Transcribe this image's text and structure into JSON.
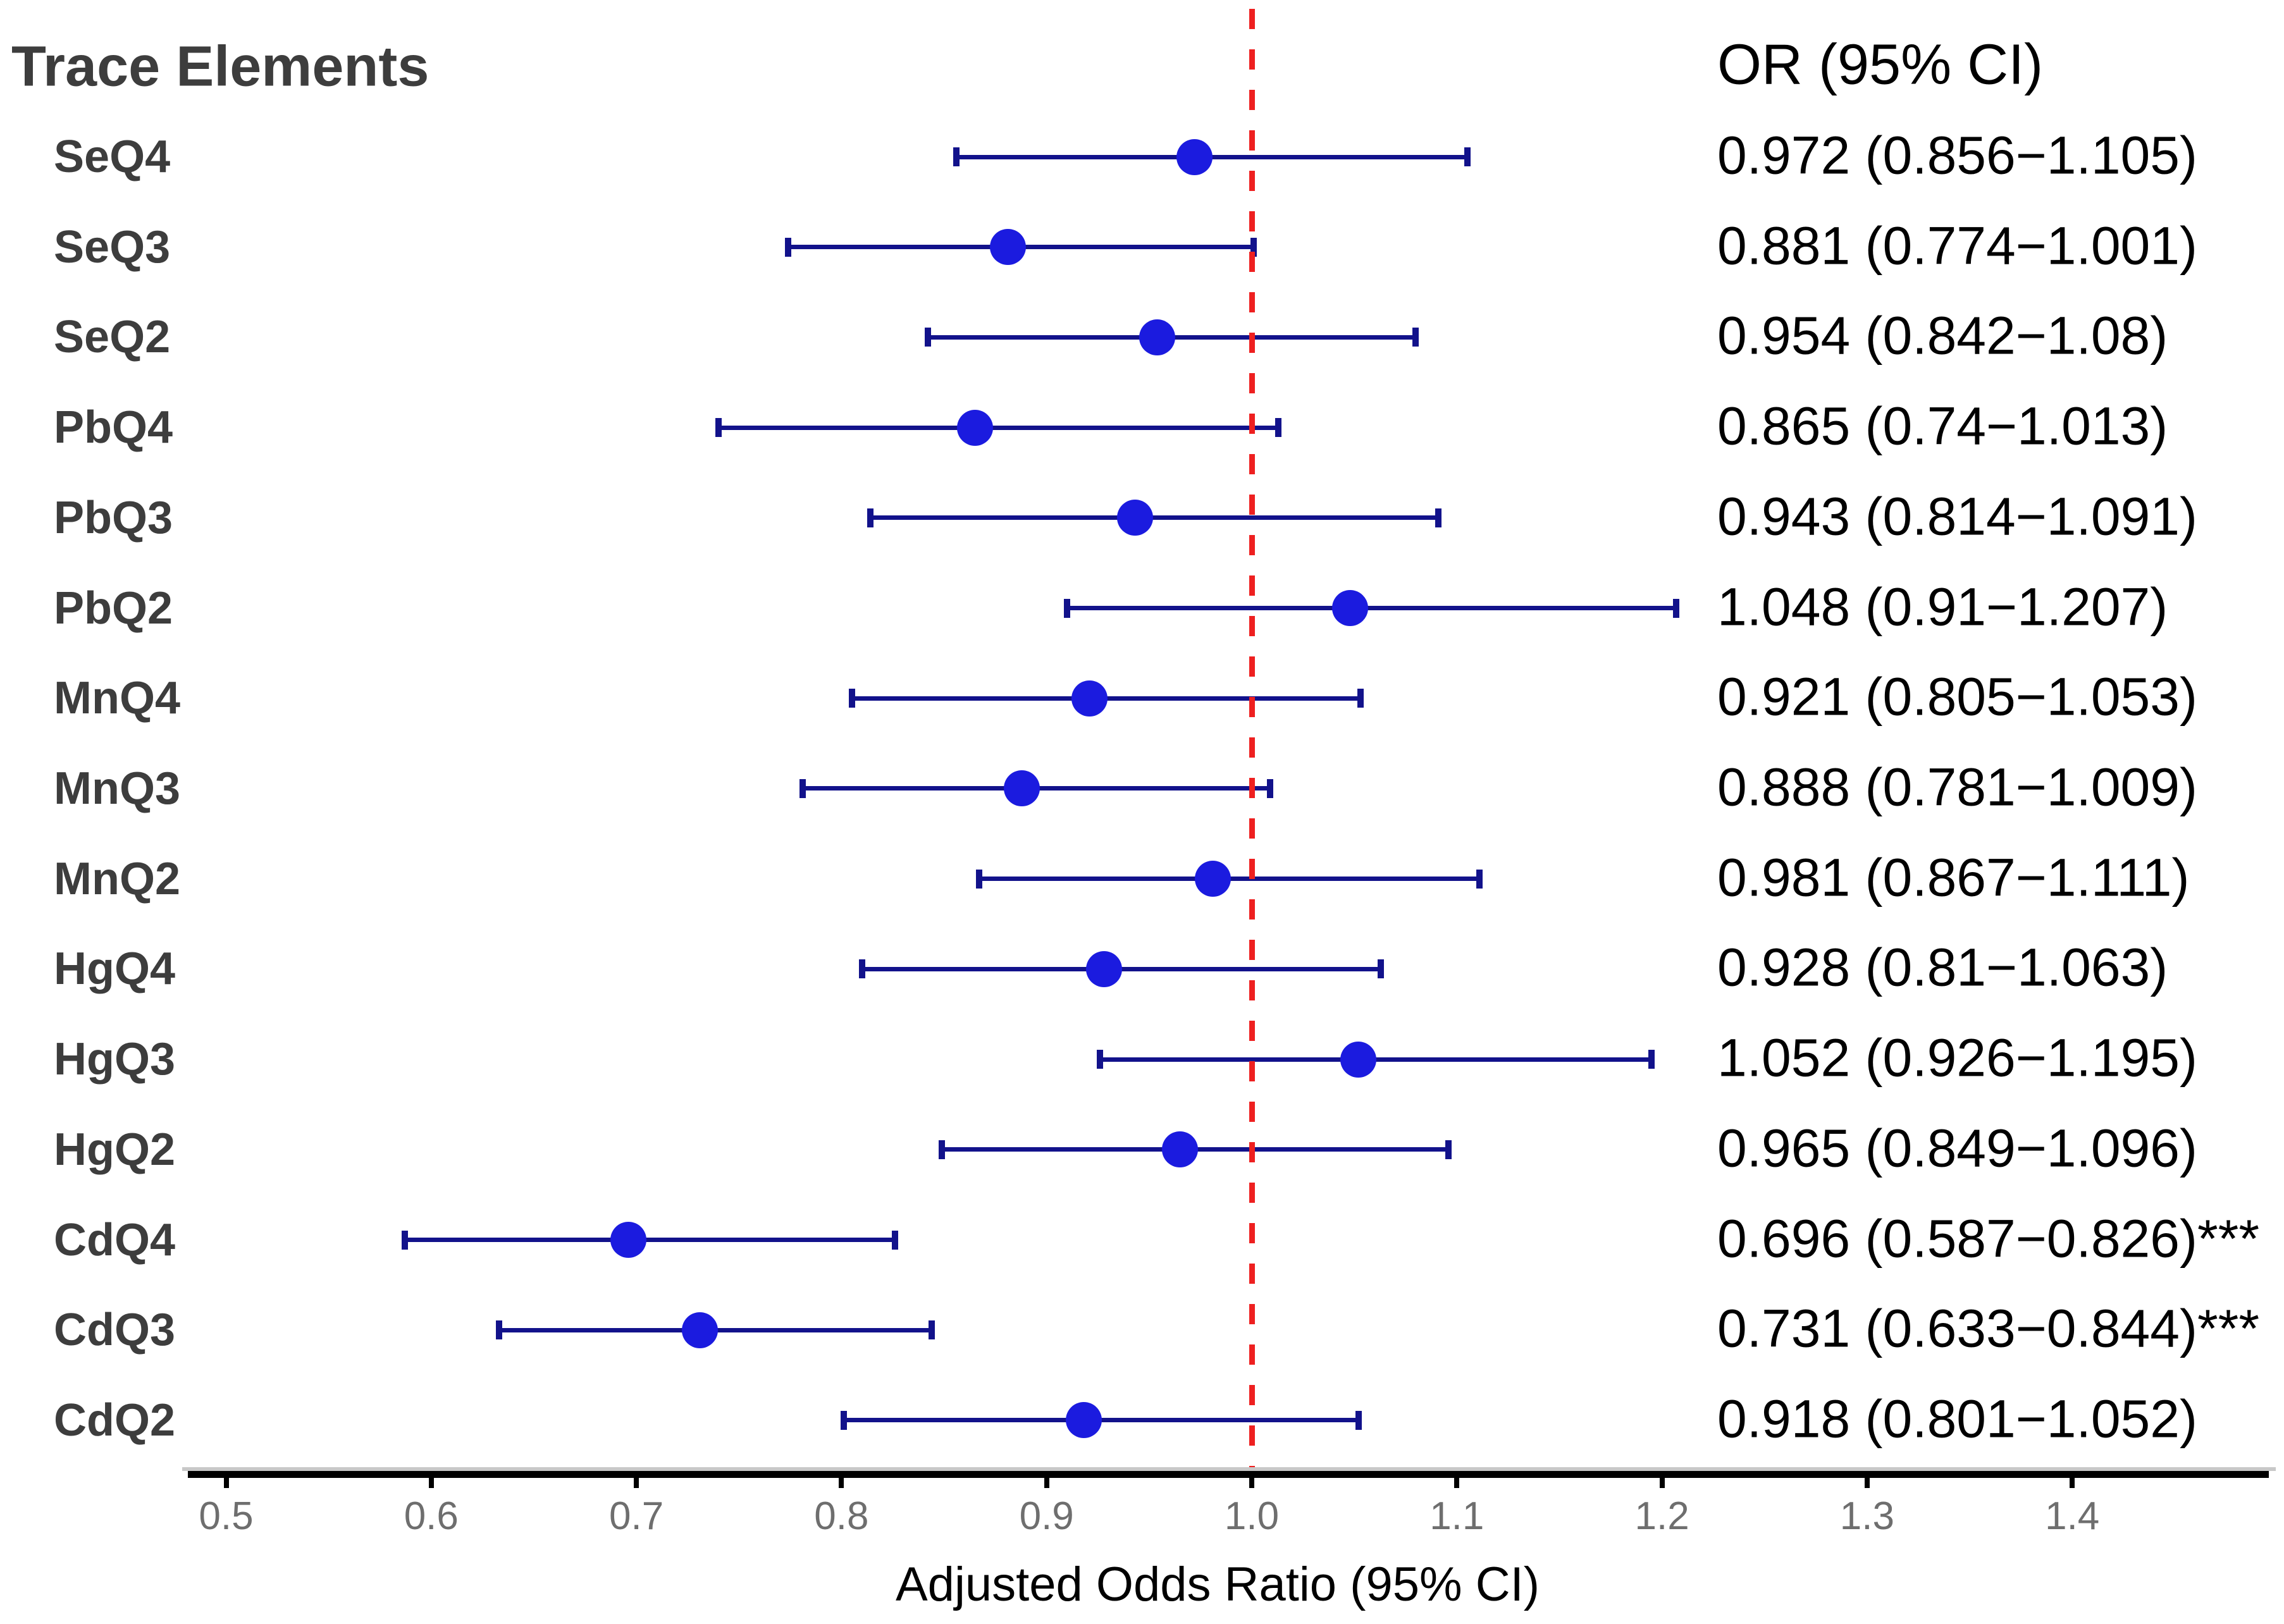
{
  "chart_data": {
    "type": "scatter",
    "subtype": "forest-plot",
    "title": "Trace Elements",
    "or_column_header": "OR (95% CI)",
    "xlabel": "Adjusted Odds Ratio (95% CI)",
    "x_ticks": [
      "0.5",
      "0.6",
      "0.7",
      "0.8",
      "0.9",
      "1.0",
      "1.1",
      "1.2",
      "1.3",
      "1.4"
    ],
    "xlim": [
      0.481,
      1.496
    ],
    "reference_line": 1.0,
    "grid": false,
    "legend": null,
    "rows": [
      {
        "label": "SeQ4",
        "or": 0.972,
        "ci_low": 0.856,
        "ci_high": 1.105,
        "text": "0.972 (0.856−1.105)"
      },
      {
        "label": "SeQ3",
        "or": 0.881,
        "ci_low": 0.774,
        "ci_high": 1.001,
        "text": "0.881 (0.774−1.001)"
      },
      {
        "label": "SeQ2",
        "or": 0.954,
        "ci_low": 0.842,
        "ci_high": 1.08,
        "text": "0.954 (0.842−1.08)"
      },
      {
        "label": "PbQ4",
        "or": 0.865,
        "ci_low": 0.74,
        "ci_high": 1.013,
        "text": "0.865 (0.74−1.013)"
      },
      {
        "label": "PbQ3",
        "or": 0.943,
        "ci_low": 0.814,
        "ci_high": 1.091,
        "text": "0.943 (0.814−1.091)"
      },
      {
        "label": "PbQ2",
        "or": 1.048,
        "ci_low": 0.91,
        "ci_high": 1.207,
        "text": "1.048 (0.91−1.207)"
      },
      {
        "label": "MnQ4",
        "or": 0.921,
        "ci_low": 0.805,
        "ci_high": 1.053,
        "text": "0.921 (0.805−1.053)"
      },
      {
        "label": "MnQ3",
        "or": 0.888,
        "ci_low": 0.781,
        "ci_high": 1.009,
        "text": "0.888 (0.781−1.009)"
      },
      {
        "label": "MnQ2",
        "or": 0.981,
        "ci_low": 0.867,
        "ci_high": 1.111,
        "text": "0.981 (0.867−1.111)"
      },
      {
        "label": "HgQ4",
        "or": 0.928,
        "ci_low": 0.81,
        "ci_high": 1.063,
        "text": "0.928 (0.81−1.063)"
      },
      {
        "label": "HgQ3",
        "or": 1.052,
        "ci_low": 0.926,
        "ci_high": 1.195,
        "text": "1.052 (0.926−1.195)"
      },
      {
        "label": "HgQ2",
        "or": 0.965,
        "ci_low": 0.849,
        "ci_high": 1.096,
        "text": "0.965 (0.849−1.096)"
      },
      {
        "label": "CdQ4",
        "or": 0.696,
        "ci_low": 0.587,
        "ci_high": 0.826,
        "text": "0.696 (0.587−0.826)***",
        "significance": "***"
      },
      {
        "label": "CdQ3",
        "or": 0.731,
        "ci_low": 0.633,
        "ci_high": 0.844,
        "text": "0.731 (0.633−0.844)***",
        "significance": "***"
      },
      {
        "label": "CdQ2",
        "or": 0.918,
        "ci_low": 0.801,
        "ci_high": 1.052,
        "text": "0.918 (0.801−1.052)"
      }
    ]
  },
  "colors": {
    "marker_blue": "#1b1bdf",
    "ci_navy": "#12128b",
    "reference_red": "#ee2020",
    "axis_black": "#000000",
    "axis_shadow_gray": "#c8c8c8",
    "tick_label_gray": "#6e6e6e",
    "row_label_gray": "#3d3d3d",
    "value_text_black": "#000000",
    "background": "#ffffff"
  }
}
